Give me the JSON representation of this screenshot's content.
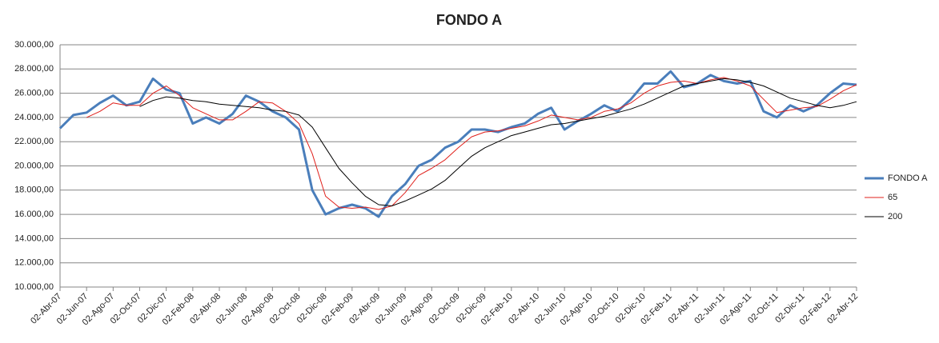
{
  "chart_data": {
    "type": "line",
    "title": "FONDO A",
    "categories": [
      "02-Abr-07",
      null,
      "02-Jun-07",
      null,
      "02-Ago-07",
      null,
      "02-Oct-07",
      null,
      "02-Dic-07",
      null,
      "02-Feb-08",
      null,
      "02-Abr-08",
      null,
      "02-Jun-08",
      null,
      "02-Ago-08",
      null,
      "02-Oct-08",
      null,
      "02-Dic-08",
      null,
      "02-Feb-09",
      null,
      "02-Abr-09",
      null,
      "02-Jun-09",
      null,
      "02-Ago-09",
      null,
      "02-Oct-09",
      null,
      "02-Dic-09",
      null,
      "02-Feb-10",
      null,
      "02-Abr-10",
      null,
      "02-Jun-10",
      null,
      "02-Ago-10",
      null,
      "02-Oct-10",
      null,
      "02-Dic-10",
      null,
      "02-Feb-11",
      null,
      "02-Abr-11",
      null,
      "02-Jun-11",
      null,
      "02-Ago-11",
      null,
      "02-Oct-11",
      null,
      "02-Dic-11",
      null,
      "02-Feb-12",
      null,
      "02-Abr-12"
    ],
    "series": [
      {
        "name": "FONDO A",
        "color": "#4a7ebb",
        "width": 3,
        "values": [
          23100,
          24200,
          24400,
          25200,
          25800,
          25000,
          25300,
          27200,
          26300,
          26000,
          23500,
          24000,
          23500,
          24300,
          25800,
          25300,
          24500,
          24000,
          23000,
          18000,
          16000,
          16500,
          16800,
          16500,
          15800,
          17500,
          18500,
          20000,
          20500,
          21500,
          22000,
          23000,
          23000,
          22800,
          23200,
          23500,
          24300,
          24800,
          23000,
          23700,
          24300,
          25000,
          24500,
          25500,
          26800,
          26800,
          27800,
          26500,
          26800,
          27500,
          27000,
          26800,
          27000,
          24500,
          24000,
          25000,
          24500,
          25000,
          26000,
          26800,
          26700
        ]
      },
      {
        "name": "65",
        "color": "#e0201b",
        "width": 1,
        "values": [
          null,
          null,
          24000,
          24500,
          25200,
          25000,
          25000,
          26000,
          26600,
          25800,
          24800,
          24300,
          23800,
          23800,
          24500,
          25300,
          25200,
          24500,
          23500,
          21000,
          17500,
          16600,
          16500,
          16600,
          16400,
          16700,
          17800,
          19200,
          19800,
          20500,
          21500,
          22400,
          22800,
          22900,
          23100,
          23300,
          23700,
          24200,
          24000,
          23800,
          24000,
          24500,
          24700,
          25200,
          26000,
          26600,
          26900,
          27000,
          26800,
          27100,
          27300,
          27000,
          26600,
          25500,
          24400,
          24600,
          24800,
          24900,
          25500,
          26200,
          26700
        ]
      },
      {
        "name": "200",
        "color": "#000000",
        "width": 1,
        "values": [
          null,
          null,
          null,
          null,
          null,
          null,
          24900,
          25400,
          25700,
          25600,
          25400,
          25300,
          25100,
          25000,
          24900,
          24800,
          24600,
          24500,
          24200,
          23200,
          21500,
          19800,
          18600,
          17500,
          16800,
          16700,
          17100,
          17600,
          18100,
          18800,
          19800,
          20800,
          21500,
          22000,
          22500,
          22800,
          23100,
          23400,
          23500,
          23700,
          23900,
          24100,
          24400,
          24700,
          25100,
          25600,
          26100,
          26600,
          26800,
          27000,
          27200,
          27100,
          26900,
          26600,
          26100,
          25600,
          25300,
          25000,
          24800,
          25000,
          25300
        ]
      }
    ],
    "ylim": [
      10000,
      30000
    ],
    "yticks": [
      {
        "value": 10000,
        "label": "10.000,00"
      },
      {
        "value": 12000,
        "label": "12.000,00"
      },
      {
        "value": 14000,
        "label": "14.000,00"
      },
      {
        "value": 16000,
        "label": "16.000,00"
      },
      {
        "value": 18000,
        "label": "18.000,00"
      },
      {
        "value": 20000,
        "label": "20.000,00"
      },
      {
        "value": 22000,
        "label": "22.000,00"
      },
      {
        "value": 24000,
        "label": "24.000,00"
      },
      {
        "value": 26000,
        "label": "26.000,00"
      },
      {
        "value": 28000,
        "label": "28.000,00"
      },
      {
        "value": 30000,
        "label": "30.000,00"
      }
    ],
    "grid": true,
    "legend": "right"
  }
}
